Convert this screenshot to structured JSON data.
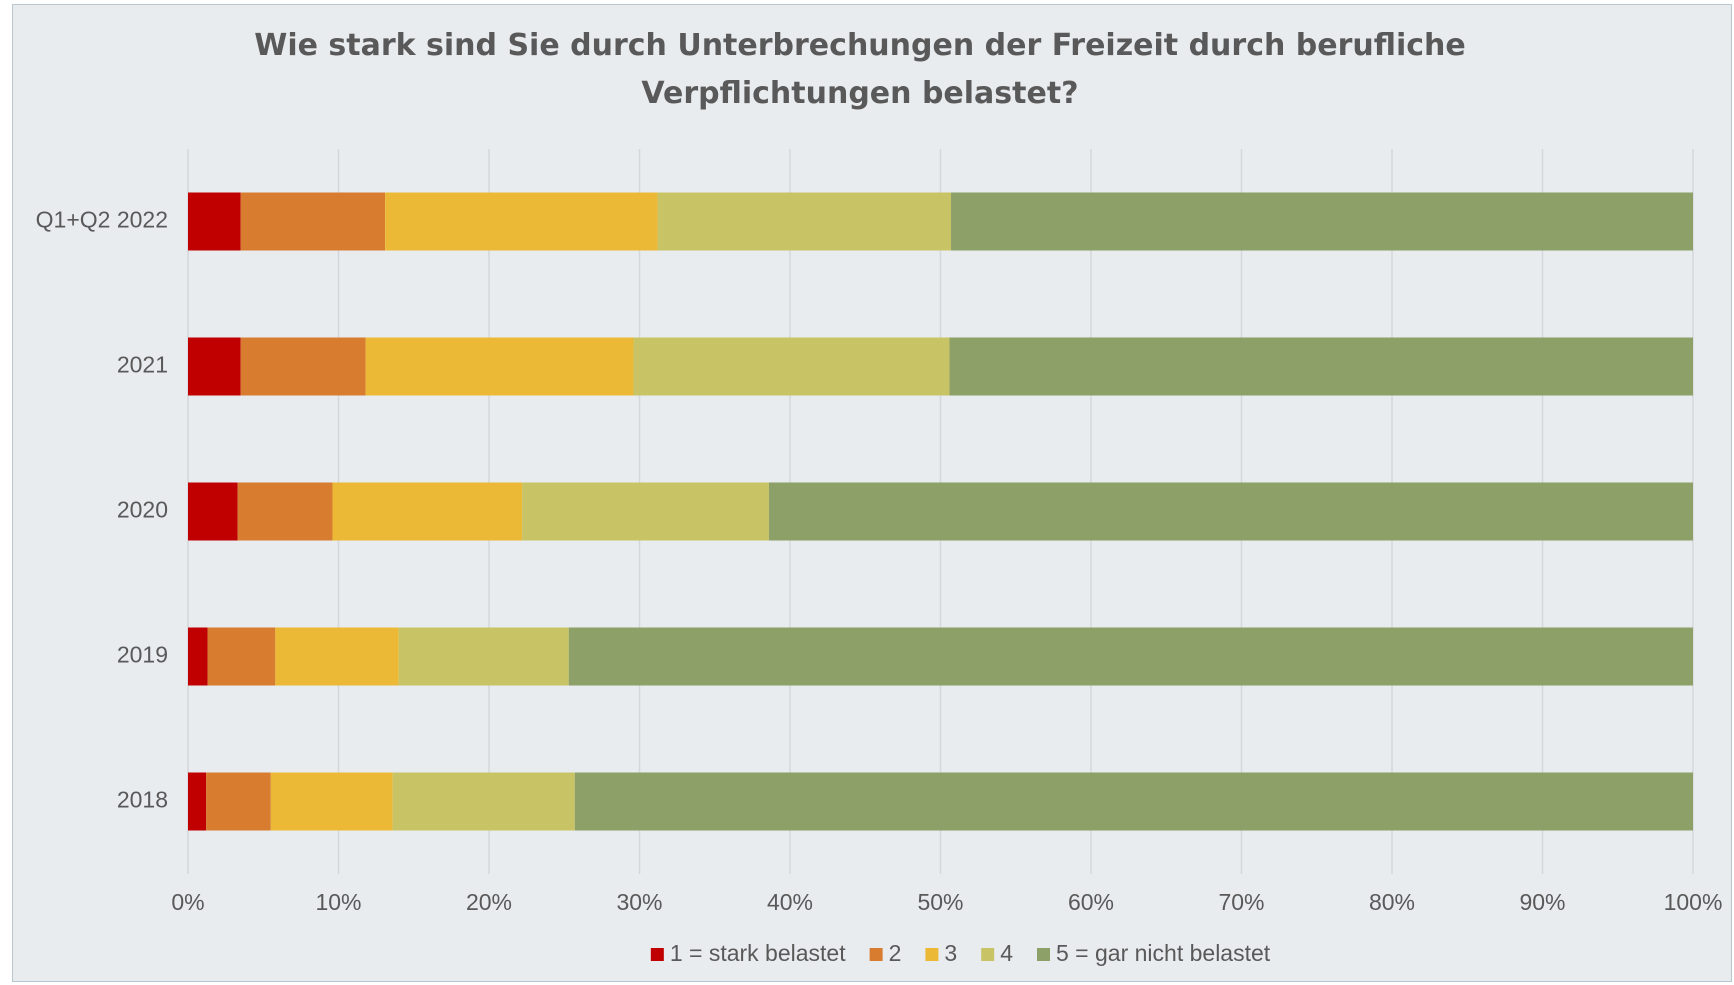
{
  "chart_data": {
    "type": "stacked_bar_horizontal",
    "title": "Wie stark sind Sie durch Unterbrechungen der Freizeit durch berufliche Verpflichtungen belastet?",
    "categories": [
      "Q1+Q2 2022",
      "2021",
      "2020",
      "2019",
      "2018"
    ],
    "series": [
      {
        "name": "1 = stark belastet",
        "color": "#c00000",
        "values": [
          3.5,
          3.5,
          3.3,
          1.3,
          1.2
        ]
      },
      {
        "name": "2",
        "color": "#d87c30",
        "values": [
          9.6,
          8.3,
          6.3,
          4.5,
          4.3
        ]
      },
      {
        "name": "3",
        "color": "#ebb935",
        "values": [
          18.1,
          17.8,
          12.6,
          8.2,
          8.1
        ]
      },
      {
        "name": "4",
        "color": "#c8c465",
        "values": [
          19.5,
          21.0,
          16.4,
          11.3,
          12.1
        ]
      },
      {
        "name": "5 = gar nicht belastet",
        "color": "#8ca068",
        "values": [
          49.3,
          49.4,
          61.4,
          74.7,
          74.3
        ]
      }
    ],
    "xlim": [
      0,
      100
    ],
    "xticks": [
      {
        "value": 0,
        "label": "0%"
      },
      {
        "value": 10,
        "label": "10%"
      },
      {
        "value": 20,
        "label": "20%"
      },
      {
        "value": 30,
        "label": "30%"
      },
      {
        "value": 40,
        "label": "40%"
      },
      {
        "value": 50,
        "label": "50%"
      },
      {
        "value": 60,
        "label": "60%"
      },
      {
        "value": 70,
        "label": "70%"
      },
      {
        "value": 80,
        "label": "80%"
      },
      {
        "value": 90,
        "label": "90%"
      },
      {
        "value": 100,
        "label": "100%"
      }
    ],
    "grid": true,
    "legend": "bottom"
  }
}
